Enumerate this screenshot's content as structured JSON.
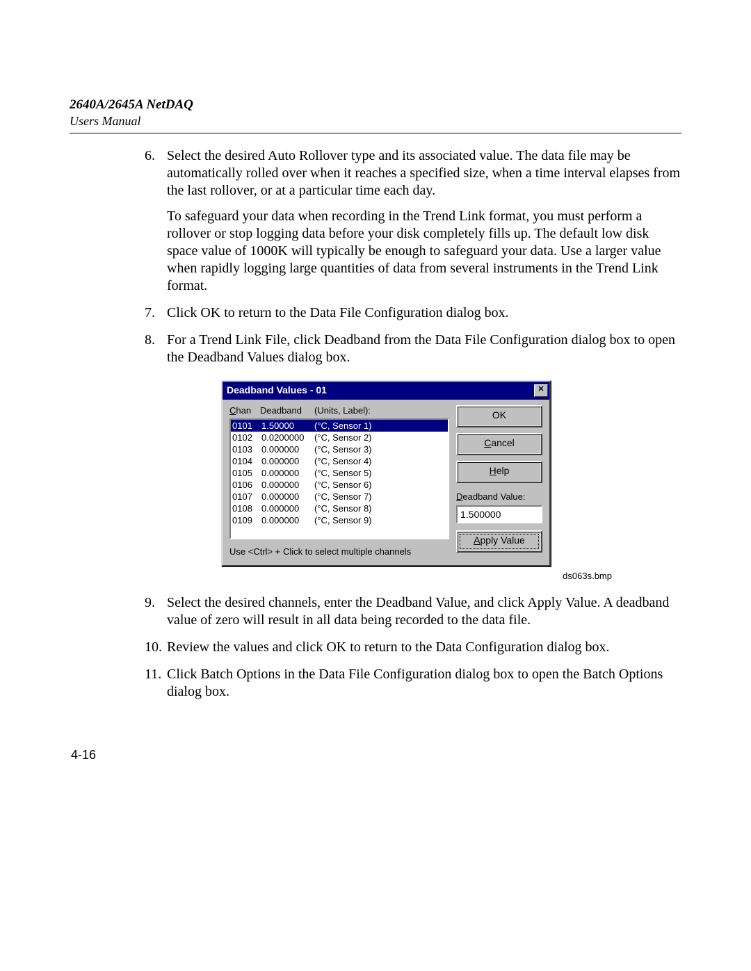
{
  "header": {
    "title": "2640A/2645A NetDAQ",
    "subtitle": "Users Manual"
  },
  "steps": {
    "s6_num": "6.",
    "s6_p1": "Select the desired Auto Rollover type and its associated value. The data file may be automatically rolled over when it reaches a specified size, when a time interval elapses from the last rollover, or at a particular time each day.",
    "s6_p2": "To safeguard your data when recording in the Trend Link format, you must perform a rollover or stop logging data before your disk completely fills up. The default low disk space value of 1000K will typically be enough to safeguard your data. Use a larger value when rapidly logging large quantities of data from several instruments in the Trend Link format.",
    "s7_num": "7.",
    "s7_p1": "Click OK to return to the Data File Configuration dialog box.",
    "s8_num": "8.",
    "s8_p1": "For a Trend Link File, click Deadband from the Data File Configuration dialog box to open the Deadband Values dialog box.",
    "s9_num": "9.",
    "s9_p1": "Select the desired channels, enter the Deadband Value, and click Apply Value. A deadband value of zero will result in all data being recorded to the data file.",
    "s10_num": "10.",
    "s10_p1": "Review the values and click OK to return to the Data Configuration dialog box.",
    "s11_num": "11.",
    "s11_p1": "Click Batch Options in the Data File Configuration dialog box to open the Batch Options dialog box."
  },
  "dialog": {
    "title": "Deadband Values - 01",
    "close_x": "✕",
    "col_chan": "Chan",
    "col_dead": "Deadband",
    "col_labl": "(Units, Label):",
    "rows": [
      {
        "chan": "0101",
        "dead": "1.50000",
        "labl": "(°C, Sensor 1)",
        "sel": true
      },
      {
        "chan": "0102",
        "dead": "0.0200000",
        "labl": "(°C, Sensor 2)",
        "sel": false
      },
      {
        "chan": "0103",
        "dead": "0.000000",
        "labl": "(°C, Sensor 3)",
        "sel": false
      },
      {
        "chan": "0104",
        "dead": "0.000000",
        "labl": "(°C, Sensor 4)",
        "sel": false
      },
      {
        "chan": "0105",
        "dead": "0.000000",
        "labl": "(°C, Sensor 5)",
        "sel": false
      },
      {
        "chan": "0106",
        "dead": "0.000000",
        "labl": "(°C, Sensor 6)",
        "sel": false
      },
      {
        "chan": "0107",
        "dead": "0.000000",
        "labl": "(°C, Sensor 7)",
        "sel": false
      },
      {
        "chan": "0108",
        "dead": "0.000000",
        "labl": "(°C, Sensor 8)",
        "sel": false
      },
      {
        "chan": "0109",
        "dead": "0.000000",
        "labl": "(°C, Sensor 9)",
        "sel": false
      }
    ],
    "hint": "Use <Ctrl> + Click to select multiple channels",
    "ok": "OK",
    "cancel": "Cancel",
    "help": "Help",
    "dv_label": "Deadband Value:",
    "dv_value": "1.500000",
    "apply": "Apply Value"
  },
  "caption": "ds063s.bmp",
  "page_number": "4-16",
  "colors": {
    "titlebar_bg": "#000080",
    "titlebar_fg": "#ffffff",
    "dialog_bg": "#c0c0c0",
    "listbox_bg": "#ffffff",
    "selected_bg": "#000080",
    "selected_fg": "#ffffff"
  }
}
